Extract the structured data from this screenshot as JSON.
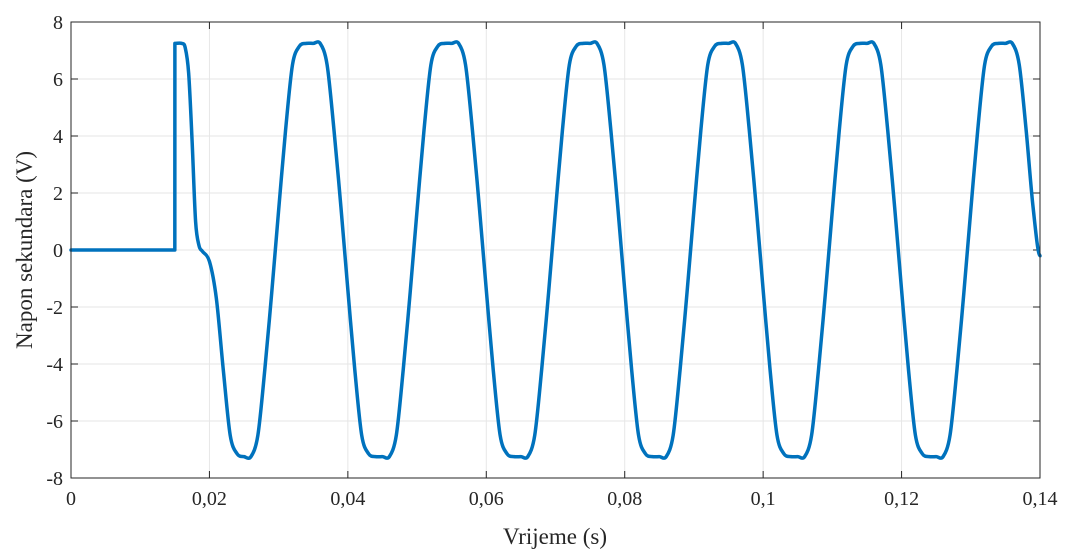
{
  "chart_data": {
    "type": "line",
    "title": "",
    "xlabel": "Vrijeme (s)",
    "ylabel": "Napon sekundara (V)",
    "xlim": [
      0,
      0.14
    ],
    "ylim": [
      -8,
      8
    ],
    "grid": true,
    "x_ticks": [
      0,
      0.02,
      0.04,
      0.06,
      0.08,
      0.1,
      0.12,
      0.14
    ],
    "x_tick_labels": [
      "0",
      "0,02",
      "0,04",
      "0,06",
      "0,08",
      "0,1",
      "0,12",
      "0,14"
    ],
    "y_ticks": [
      -8,
      -6,
      -4,
      -2,
      0,
      2,
      4,
      6,
      8
    ],
    "y_tick_labels": [
      "-8",
      "-6",
      "-4",
      "-2",
      "0",
      "2",
      "4",
      "6",
      "8"
    ],
    "series": [
      {
        "color": "#0072BD",
        "x": [
          0,
          0.015,
          0.01501,
          0.016,
          0.0165,
          0.017,
          0.0175,
          0.018,
          0.0185,
          0.019,
          0.02,
          0.021,
          0.022,
          0.023,
          0.024,
          0.025,
          0.026,
          0.027,
          0.028,
          0.029,
          0.03,
          0.031,
          0.032,
          0.033,
          0.034,
          0.035,
          0.036,
          0.037,
          0.038,
          0.039,
          0.04,
          0.041,
          0.042,
          0.043,
          0.044,
          0.045,
          0.046,
          0.047,
          0.048,
          0.049,
          0.05,
          0.051,
          0.052,
          0.053,
          0.054,
          0.055,
          0.056,
          0.057,
          0.058,
          0.059,
          0.06,
          0.061,
          0.062,
          0.063,
          0.064,
          0.065,
          0.066,
          0.067,
          0.068,
          0.069,
          0.07,
          0.071,
          0.072,
          0.073,
          0.074,
          0.075,
          0.076,
          0.077,
          0.078,
          0.079,
          0.08,
          0.081,
          0.082,
          0.083,
          0.084,
          0.085,
          0.086,
          0.087,
          0.088,
          0.089,
          0.09,
          0.091,
          0.092,
          0.093,
          0.094,
          0.095,
          0.096,
          0.097,
          0.098,
          0.099,
          0.1,
          0.101,
          0.102,
          0.103,
          0.104,
          0.105,
          0.106,
          0.107,
          0.108,
          0.109,
          0.11,
          0.111,
          0.112,
          0.113,
          0.114,
          0.115,
          0.116,
          0.117,
          0.118,
          0.119,
          0.12,
          0.121,
          0.122,
          0.123,
          0.124,
          0.125,
          0.126,
          0.127,
          0.128,
          0.129,
          0.13,
          0.131,
          0.132,
          0.133,
          0.134,
          0.135,
          0.136,
          0.137,
          0.138,
          0.139,
          0.14
        ],
        "y": [
          0,
          0,
          7.25,
          7.25,
          7.1,
          6.2,
          3.8,
          1.0,
          0.15,
          -0.05,
          -0.4,
          -1.7,
          -4.2,
          -6.5,
          -7.15,
          -7.25,
          -7.25,
          -6.5,
          -4.2,
          -1.5,
          1.4,
          4.2,
          6.5,
          7.15,
          7.25,
          7.25,
          7.25,
          6.5,
          4.2,
          1.5,
          -1.4,
          -4.2,
          -6.5,
          -7.15,
          -7.25,
          -7.25,
          -7.25,
          -6.5,
          -4.2,
          -1.5,
          1.4,
          4.2,
          6.5,
          7.15,
          7.25,
          7.25,
          7.25,
          6.5,
          4.2,
          1.5,
          -1.4,
          -4.2,
          -6.5,
          -7.15,
          -7.25,
          -7.25,
          -7.25,
          -6.5,
          -4.2,
          -1.5,
          1.4,
          4.2,
          6.5,
          7.15,
          7.25,
          7.25,
          7.25,
          6.5,
          4.2,
          1.5,
          -1.4,
          -4.2,
          -6.5,
          -7.15,
          -7.25,
          -7.25,
          -7.25,
          -6.5,
          -4.2,
          -1.5,
          1.4,
          4.2,
          6.5,
          7.15,
          7.25,
          7.25,
          7.25,
          6.5,
          4.2,
          1.5,
          -1.4,
          -4.2,
          -6.5,
          -7.15,
          -7.25,
          -7.25,
          -7.25,
          -6.5,
          -4.2,
          -1.5,
          1.4,
          4.2,
          6.5,
          7.15,
          7.25,
          7.25,
          7.25,
          6.5,
          4.2,
          1.5,
          -1.4,
          -4.2,
          -6.5,
          -7.15,
          -7.25,
          -7.25,
          -7.25,
          -6.5,
          -4.2,
          -1.5,
          1.4,
          4.2,
          6.5,
          7.15,
          7.25,
          7.25,
          7.25,
          6.5,
          4.2,
          1.5,
          -0.2
        ]
      }
    ]
  }
}
